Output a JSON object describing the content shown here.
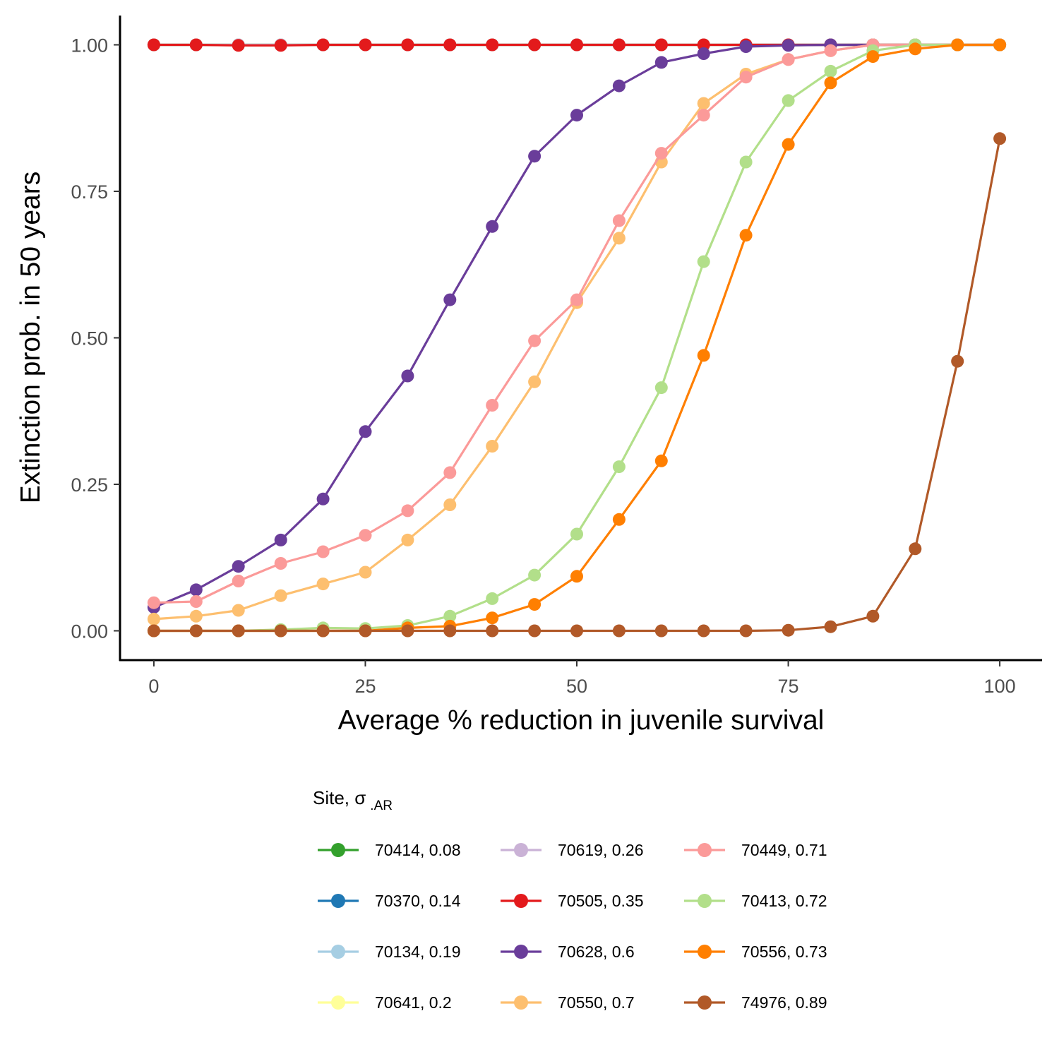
{
  "chart_data": {
    "type": "line",
    "xlabel": "Average % reduction in juvenile survival",
    "ylabel": "Extinction prob. in 50 years",
    "xlim": [
      -4,
      105
    ],
    "ylim": [
      -0.05,
      1.05
    ],
    "x_ticks": [
      0,
      25,
      50,
      75,
      100
    ],
    "x_tick_labels": [
      "0",
      "25",
      "50",
      "75",
      "100"
    ],
    "y_ticks": [
      0,
      0.25,
      0.5,
      0.75,
      1.0
    ],
    "y_tick_labels": [
      "0.00",
      "0.25",
      "0.50",
      "0.75",
      "1.00"
    ],
    "grid": false,
    "legend_position": "bottom",
    "legend": {
      "title": "Site, σ",
      "title_subscript": ".AR",
      "columns": 3
    },
    "x": [
      0,
      5,
      10,
      15,
      20,
      25,
      30,
      35,
      40,
      45,
      50,
      55,
      60,
      65,
      70,
      75,
      80,
      85,
      90,
      95,
      100
    ],
    "series": [
      {
        "name": "70414, 0.08",
        "color": "#33a02c",
        "values": [
          1,
          1,
          1,
          1,
          1,
          1,
          1,
          1,
          1,
          1,
          1,
          1,
          1,
          1,
          1,
          1,
          1,
          1,
          1,
          1,
          1
        ]
      },
      {
        "name": "70370, 0.14",
        "color": "#1f78b4",
        "values": [
          1,
          1,
          1,
          1,
          1,
          1,
          1,
          1,
          1,
          1,
          1,
          1,
          1,
          1,
          1,
          1,
          1,
          1,
          1,
          1,
          1
        ]
      },
      {
        "name": "70134, 0.19",
        "color": "#a6cee3",
        "values": [
          1,
          1,
          1,
          1,
          1,
          1,
          1,
          1,
          1,
          1,
          1,
          1,
          1,
          1,
          1,
          1,
          1,
          1,
          1,
          1,
          1
        ]
      },
      {
        "name": "70641, 0.2",
        "color": "#ffff99",
        "values": [
          1,
          1,
          1,
          1,
          1,
          1,
          1,
          1,
          1,
          1,
          1,
          1,
          1,
          1,
          1,
          1,
          1,
          1,
          1,
          1,
          1
        ]
      },
      {
        "name": "70619, 0.26",
        "color": "#cab2d6",
        "values": [
          1,
          1,
          1,
          1,
          1,
          1,
          1,
          1,
          1,
          1,
          1,
          1,
          1,
          1,
          1,
          1,
          1,
          1,
          1,
          1,
          1
        ]
      },
      {
        "name": "70505, 0.35",
        "color": "#e31a1c",
        "values": [
          1,
          1,
          0.999,
          0.999,
          1,
          1,
          1,
          1,
          1,
          1,
          1,
          1,
          1,
          1,
          1,
          1,
          1,
          1,
          1,
          1,
          1
        ]
      },
      {
        "name": "70628, 0.6",
        "color": "#6a3d9a",
        "values": [
          0.04,
          0.07,
          0.11,
          0.155,
          0.225,
          0.34,
          0.435,
          0.565,
          0.69,
          0.81,
          0.88,
          0.93,
          0.97,
          0.985,
          0.997,
          0.999,
          1,
          1,
          1,
          1,
          1
        ]
      },
      {
        "name": "70550, 0.7",
        "color": "#fdbf6f",
        "values": [
          0.02,
          0.025,
          0.035,
          0.06,
          0.08,
          0.1,
          0.155,
          0.215,
          0.315,
          0.425,
          0.56,
          0.67,
          0.8,
          0.9,
          0.95,
          0.975,
          0.99,
          1,
          1,
          1,
          1
        ]
      },
      {
        "name": "70449, 0.71",
        "color": "#fb9a99",
        "values": [
          0.048,
          0.05,
          0.085,
          0.115,
          0.135,
          0.163,
          0.205,
          0.27,
          0.385,
          0.495,
          0.565,
          0.7,
          0.815,
          0.88,
          0.945,
          0.975,
          0.99,
          1,
          1,
          1,
          1
        ]
      },
      {
        "name": "70413, 0.72",
        "color": "#b2df8a",
        "values": [
          0,
          0,
          0,
          0.002,
          0.005,
          0.004,
          0.009,
          0.025,
          0.055,
          0.095,
          0.165,
          0.28,
          0.415,
          0.63,
          0.8,
          0.905,
          0.955,
          0.99,
          1,
          1,
          1
        ]
      },
      {
        "name": "70556, 0.73",
        "color": "#ff7f00",
        "values": [
          0,
          0,
          0,
          0,
          0,
          0,
          0.005,
          0.008,
          0.022,
          0.045,
          0.093,
          0.19,
          0.29,
          0.47,
          0.675,
          0.83,
          0.935,
          0.98,
          0.993,
          1,
          1
        ]
      },
      {
        "name": "74976, 0.89",
        "color": "#b15928",
        "values": [
          0,
          0,
          0,
          0,
          0,
          0,
          0,
          0,
          0,
          0,
          0,
          0,
          0,
          0,
          0,
          0.001,
          0.007,
          0.025,
          0.14,
          0.46,
          0.84
        ]
      }
    ]
  }
}
